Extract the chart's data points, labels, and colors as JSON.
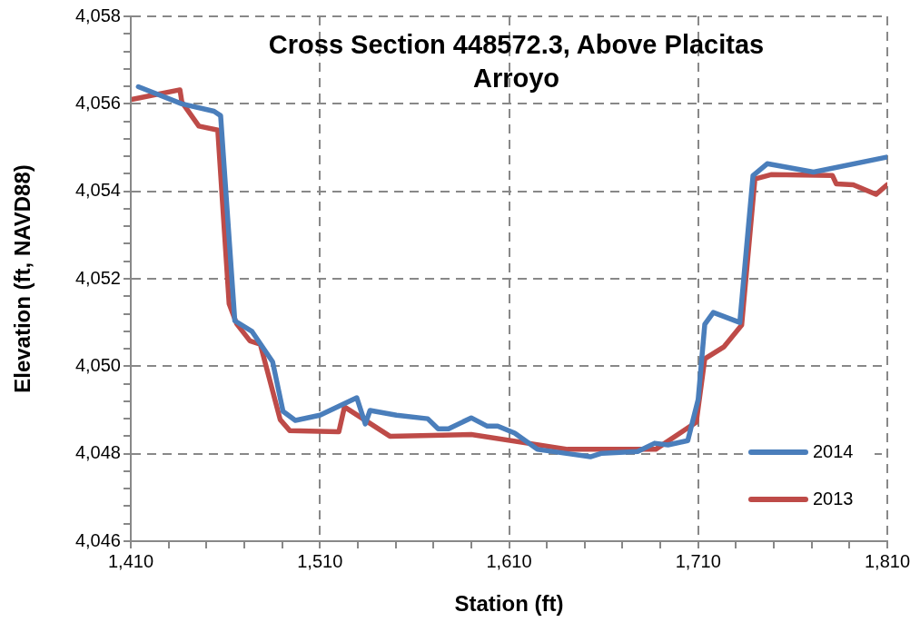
{
  "chart_data": {
    "type": "line",
    "title": "Cross Section 448572.3, Above Placitas Arroyo",
    "xlabel": "Station (ft)",
    "ylabel": "Elevation (ft, NAVD88)",
    "xlim": [
      1410,
      1810
    ],
    "xticks": [
      {
        "value": 1410,
        "label": "1,410"
      },
      {
        "value": 1430,
        "label": null
      },
      {
        "value": 1450,
        "label": null
      },
      {
        "value": 1470,
        "label": null
      },
      {
        "value": 1490,
        "label": null
      },
      {
        "value": 1510,
        "label": "1,510"
      },
      {
        "value": 1530,
        "label": null
      },
      {
        "value": 1550,
        "label": null
      },
      {
        "value": 1570,
        "label": null
      },
      {
        "value": 1590,
        "label": null
      },
      {
        "value": 1610,
        "label": "1,610"
      },
      {
        "value": 1630,
        "label": null
      },
      {
        "value": 1650,
        "label": null
      },
      {
        "value": 1670,
        "label": null
      },
      {
        "value": 1690,
        "label": null
      },
      {
        "value": 1710,
        "label": "1,710"
      },
      {
        "value": 1730,
        "label": null
      },
      {
        "value": 1750,
        "label": null
      },
      {
        "value": 1770,
        "label": null
      },
      {
        "value": 1790,
        "label": null
      },
      {
        "value": 1810,
        "label": "1,810"
      }
    ],
    "ylim": [
      4046,
      4058
    ],
    "yticks": [
      {
        "value": 4046,
        "label": "4,046"
      },
      {
        "value": 4046.4,
        "label": null
      },
      {
        "value": 4046.8,
        "label": null
      },
      {
        "value": 4047.2,
        "label": null
      },
      {
        "value": 4047.6,
        "label": null
      },
      {
        "value": 4048,
        "label": "4,048"
      },
      {
        "value": 4048.4,
        "label": null
      },
      {
        "value": 4048.8,
        "label": null
      },
      {
        "value": 4049.2,
        "label": null
      },
      {
        "value": 4049.6,
        "label": null
      },
      {
        "value": 4050,
        "label": "4,050"
      },
      {
        "value": 4050.4,
        "label": null
      },
      {
        "value": 4050.8,
        "label": null
      },
      {
        "value": 4051.2,
        "label": null
      },
      {
        "value": 4051.6,
        "label": null
      },
      {
        "value": 4052,
        "label": "4,052"
      },
      {
        "value": 4052.4,
        "label": null
      },
      {
        "value": 4052.8,
        "label": null
      },
      {
        "value": 4053.2,
        "label": null
      },
      {
        "value": 4053.6,
        "label": null
      },
      {
        "value": 4054,
        "label": "4,054"
      },
      {
        "value": 4054.4,
        "label": null
      },
      {
        "value": 4054.8,
        "label": null
      },
      {
        "value": 4055.2,
        "label": null
      },
      {
        "value": 4055.6,
        "label": null
      },
      {
        "value": 4056,
        "label": "4,056"
      },
      {
        "value": 4056.4,
        "label": null
      },
      {
        "value": 4056.8,
        "label": null
      },
      {
        "value": 4057.2,
        "label": null
      },
      {
        "value": 4057.6,
        "label": null
      },
      {
        "value": 4058,
        "label": "4,058"
      }
    ],
    "grid": true,
    "legend": "bottom right",
    "marker": "none",
    "line_style": "solid",
    "series": [
      {
        "name": "2014",
        "color": "#4a7ebb",
        "x": [
          1414,
          1437,
          1454,
          1457.5,
          1465,
          1474,
          1485,
          1490.5,
          1497,
          1510,
          1529.5,
          1534,
          1536.5,
          1550.5,
          1567,
          1572.5,
          1578,
          1590,
          1598.5,
          1604,
          1613,
          1625,
          1643,
          1653,
          1659,
          1678,
          1687,
          1694,
          1704.5,
          1710,
          1713.5,
          1718,
          1732,
          1739,
          1746.5,
          1771,
          1809.5
        ],
        "values": [
          4056.39,
          4056.0,
          4055.83,
          4055.73,
          4051.04,
          4050.8,
          4050.1,
          4048.97,
          4048.76,
          4048.88,
          4049.28,
          4048.68,
          4048.99,
          4048.88,
          4048.8,
          4048.57,
          4048.57,
          4048.82,
          4048.63,
          4048.63,
          4048.47,
          4048.1,
          4047.99,
          4047.93,
          4048.01,
          4048.05,
          4048.24,
          4048.2,
          4048.3,
          4049.24,
          4050.96,
          4051.23,
          4051.0,
          4054.36,
          4054.63,
          4054.44,
          4054.78
        ]
      },
      {
        "name": "2013",
        "color": "#be4b48",
        "x": [
          1410.5,
          1436,
          1437,
          1446,
          1456,
          1462,
          1466,
          1473,
          1478.5,
          1489,
          1494,
          1520,
          1523,
          1547,
          1590,
          1641,
          1687.5,
          1709,
          1713.5,
          1723.5,
          1733,
          1740,
          1748.5,
          1781,
          1783,
          1792,
          1804,
          1810
        ],
        "values": [
          4056.1,
          4056.32,
          4056.04,
          4055.49,
          4055.4,
          4051.43,
          4050.97,
          4050.58,
          4050.5,
          4048.78,
          4048.53,
          4048.5,
          4049.07,
          4048.4,
          4048.44,
          4048.1,
          4048.1,
          4048.72,
          4050.17,
          4050.44,
          4050.94,
          4054.28,
          4054.38,
          4054.36,
          4054.17,
          4054.15,
          4053.93,
          4054.15
        ]
      }
    ]
  }
}
